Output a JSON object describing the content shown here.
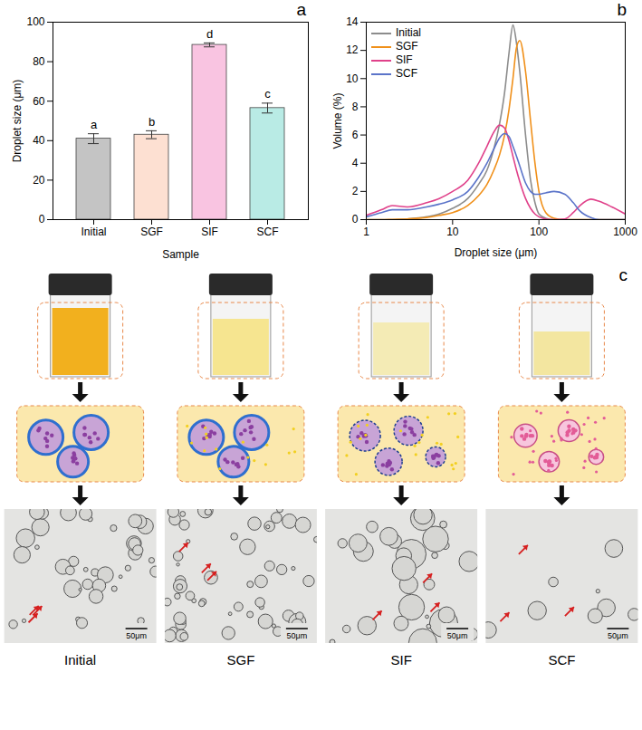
{
  "chart_data": [
    {
      "type": "bar",
      "panel_label": "a",
      "x_label": "Sample",
      "y_label": "Droplet size (μm)",
      "categories": [
        "Initial",
        "SGF",
        "SIF",
        "SCF"
      ],
      "values": [
        41,
        43,
        88.5,
        56.5
      ],
      "errors": [
        2.5,
        2,
        1,
        2.5
      ],
      "annotations": [
        "a",
        "b",
        "d",
        "c"
      ],
      "colors": [
        "#c4c4c4",
        "#fde0d2",
        "#f9c4e1",
        "#b9ebe5"
      ],
      "ylim": [
        0,
        100
      ],
      "yticks": [
        0,
        20,
        40,
        60,
        80,
        100
      ],
      "grid": false
    },
    {
      "type": "line",
      "panel_label": "b",
      "x_label": "Droplet size (μm)",
      "y_label": "Volume (%)",
      "log": "x",
      "x": [
        1,
        1.5,
        2,
        3,
        5,
        7,
        10,
        15,
        20,
        25,
        30,
        35,
        40,
        45,
        50,
        55,
        60,
        70,
        80,
        90,
        100,
        120,
        150,
        200,
        250,
        300,
        400,
        500,
        700,
        1000
      ],
      "series": [
        {
          "name": "Initial",
          "color": "#8c8c8c",
          "values": [
            0,
            0,
            0,
            0.05,
            0.2,
            0.4,
            0.8,
            1.5,
            2.5,
            3.5,
            5,
            6.8,
            9,
            11.8,
            13.8,
            12.5,
            10.5,
            6,
            2.8,
            1.2,
            0.4,
            0.1,
            0,
            0,
            0,
            0,
            0,
            0,
            0,
            0
          ]
        },
        {
          "name": "SGF",
          "color": "#f0901a",
          "values": [
            0,
            0,
            0.02,
            0.05,
            0.15,
            0.3,
            0.5,
            1,
            1.7,
            2.5,
            3.5,
            4.6,
            6,
            7.8,
            10,
            12.2,
            12.7,
            10.5,
            7,
            4,
            2,
            0.5,
            0.1,
            0,
            0,
            0,
            0,
            0,
            0,
            0
          ]
        },
        {
          "name": "SIF",
          "color": "#e0418a",
          "values": [
            0.3,
            0.7,
            1,
            0.9,
            1.2,
            1.5,
            2,
            2.8,
            4,
            5.2,
            6.2,
            6.7,
            6.5,
            5.6,
            4.5,
            3.5,
            2.7,
            1.5,
            0.8,
            0.4,
            0.2,
            0.05,
            0,
            0.05,
            0.5,
            1,
            1.45,
            1.3,
            0.9,
            0.4
          ]
        },
        {
          "name": "SCF",
          "color": "#5b74c9",
          "values": [
            0.2,
            0.5,
            0.7,
            0.7,
            0.9,
            1.1,
            1.4,
            2,
            3,
            4,
            5,
            5.8,
            6.1,
            5.9,
            5.2,
            4.5,
            3.8,
            2.6,
            2,
            1.8,
            1.8,
            1.9,
            2,
            1.8,
            1.2,
            0.6,
            0.15,
            0,
            0,
            0
          ]
        }
      ],
      "xlim": [
        1,
        1000
      ],
      "xticks": [
        1,
        10,
        100,
        1000
      ],
      "ylim": [
        0,
        14
      ],
      "yticks": [
        0,
        2,
        4,
        6,
        8,
        10,
        12,
        14
      ],
      "legend": "top-left",
      "grid": false
    }
  ],
  "diagram": {
    "panel_label": "c",
    "columns": [
      "Initial",
      "SGF",
      "SIF",
      "SCF"
    ],
    "scale_bar": "50μm"
  }
}
